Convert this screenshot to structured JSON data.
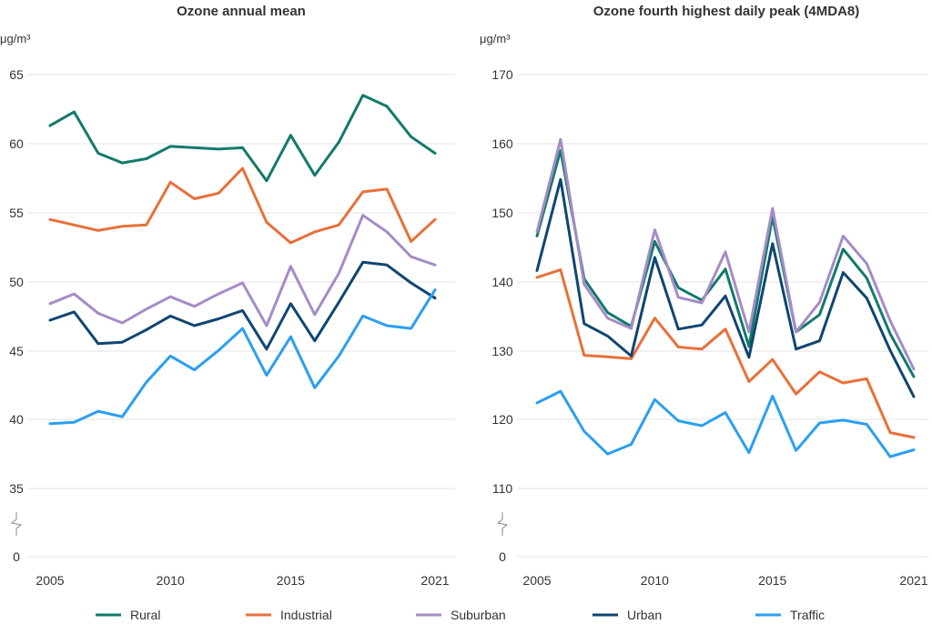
{
  "colors": {
    "Rural": "#127a6b",
    "Industrial": "#e8703a",
    "Suburban": "#a58cc6",
    "Urban": "#0f4671",
    "Traffic": "#2b9ff0"
  },
  "legend": [
    "Rural",
    "Industrial",
    "Suburban",
    "Urban",
    "Traffic"
  ],
  "chart_data": [
    {
      "type": "line",
      "title": "Ozone annual mean",
      "unit": "μg/m³",
      "x": [
        2005,
        2006,
        2007,
        2008,
        2009,
        2010,
        2011,
        2012,
        2013,
        2014,
        2015,
        2016,
        2017,
        2018,
        2019,
        2020,
        2021
      ],
      "xticks": [
        "2005",
        "2010",
        "2015",
        "2021"
      ],
      "xtick_values": [
        2005,
        2010,
        2015,
        2021
      ],
      "yticks": [
        "0",
        "35",
        "40",
        "45",
        "50",
        "55",
        "60",
        "65"
      ],
      "ytick_values": [
        0,
        35,
        40,
        45,
        50,
        55,
        60,
        65
      ],
      "axis_break": true,
      "series": [
        {
          "name": "Rural",
          "values": [
            61.3,
            62.3,
            59.3,
            58.6,
            58.9,
            59.8,
            59.7,
            59.6,
            59.7,
            57.3,
            60.6,
            57.7,
            60.1,
            63.5,
            62.7,
            60.5,
            59.3
          ]
        },
        {
          "name": "Industrial",
          "values": [
            54.5,
            54.1,
            53.7,
            54.0,
            54.1,
            57.2,
            56.0,
            56.4,
            58.2,
            54.3,
            52.8,
            53.6,
            54.1,
            56.5,
            56.7,
            52.9,
            54.5
          ]
        },
        {
          "name": "Suburban",
          "values": [
            48.4,
            49.1,
            47.7,
            47.0,
            48.0,
            48.9,
            48.2,
            49.1,
            49.9,
            46.8,
            51.1,
            47.6,
            50.6,
            54.8,
            53.6,
            51.8,
            51.2
          ]
        },
        {
          "name": "Urban",
          "values": [
            47.2,
            47.8,
            45.5,
            45.6,
            46.5,
            47.5,
            46.8,
            47.3,
            47.9,
            45.1,
            48.4,
            45.7,
            48.5,
            51.4,
            51.2,
            49.9,
            48.8
          ]
        },
        {
          "name": "Traffic",
          "values": [
            39.7,
            39.8,
            40.6,
            40.2,
            42.7,
            44.6,
            43.6,
            45.0,
            46.6,
            43.2,
            46.0,
            42.3,
            44.6,
            47.5,
            46.8,
            46.6,
            49.4
          ]
        }
      ]
    },
    {
      "type": "line",
      "title": "Ozone fourth highest daily peak (4MDA8)",
      "unit": "μg/m³",
      "x": [
        2005,
        2006,
        2007,
        2008,
        2009,
        2010,
        2011,
        2012,
        2013,
        2014,
        2015,
        2016,
        2017,
        2018,
        2019,
        2020,
        2021
      ],
      "xticks": [
        "2005",
        "2010",
        "2015",
        "2021"
      ],
      "xtick_values": [
        2005,
        2010,
        2015,
        2021
      ],
      "yticks": [
        "0",
        "110",
        "120",
        "130",
        "140",
        "150",
        "160",
        "170"
      ],
      "ytick_values": [
        0,
        110,
        120,
        130,
        140,
        150,
        160,
        170
      ],
      "axis_break": true,
      "series": [
        {
          "name": "Rural",
          "values": [
            146.6,
            159.0,
            140.4,
            135.5,
            133.5,
            145.8,
            139.1,
            137.3,
            141.8,
            130.6,
            149.4,
            132.7,
            135.2,
            144.7,
            140.5,
            132.4,
            126.2
          ]
        },
        {
          "name": "Industrial",
          "values": [
            140.6,
            141.7,
            129.3,
            129.1,
            128.8,
            134.7,
            130.5,
            130.2,
            133.1,
            125.5,
            128.7,
            123.7,
            126.9,
            125.3,
            125.9,
            118.1,
            117.4
          ]
        },
        {
          "name": "Suburban",
          "values": [
            147.2,
            160.6,
            139.6,
            134.7,
            133.2,
            147.5,
            137.7,
            136.9,
            144.3,
            132.7,
            150.6,
            132.7,
            137.0,
            146.6,
            142.6,
            134.3,
            127.3
          ]
        },
        {
          "name": "Urban",
          "values": [
            141.6,
            154.8,
            133.9,
            132.1,
            129.2,
            143.5,
            133.1,
            133.7,
            137.9,
            129.0,
            145.5,
            130.2,
            131.4,
            141.3,
            137.6,
            130.0,
            123.3
          ]
        },
        {
          "name": "Traffic",
          "values": [
            122.4,
            124.1,
            118.3,
            115.0,
            116.4,
            122.9,
            119.8,
            119.1,
            121.0,
            115.2,
            123.4,
            115.5,
            119.5,
            119.9,
            119.3,
            114.6,
            115.6
          ]
        }
      ]
    }
  ]
}
